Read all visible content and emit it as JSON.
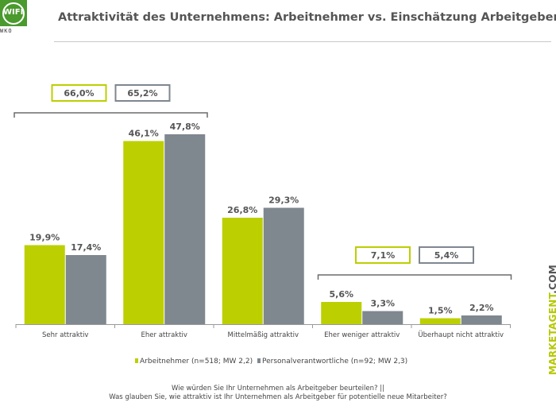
{
  "logo": {
    "name": "WIFI",
    "sub": "WKO"
  },
  "header": {
    "title": "Attraktivität des Unternehmens: Arbeitnehmer vs. Einschätzung Arbeitgeber"
  },
  "brand": {
    "main": "MARKETAGENT",
    "suffix": ".COM"
  },
  "footnote": {
    "line1": "Wie würden Sie Ihr Unternehmen als Arbeitgeber beurteilen?  ||",
    "line2": "Was glauben Sie, wie attraktiv ist Ihr Unternehmen als Arbeitgeber für potentielle neue Mitarbeiter?"
  },
  "chart_data": {
    "type": "bar",
    "title": "Attraktivität des Unternehmens: Arbeitnehmer vs. Einschätzung Arbeitgeber",
    "categories": [
      "Sehr attraktiv",
      "Eher attraktiv",
      "Mittelmäßig attraktiv",
      "Eher weniger attraktiv",
      "Überhaupt nicht attraktiv"
    ],
    "series": [
      {
        "name": "Arbeitnehmer (n=518; MW 2,2)",
        "color": "#bccf00",
        "values": [
          19.9,
          46.1,
          26.8,
          5.6,
          1.5
        ],
        "labels": [
          "19,9%",
          "46,1%",
          "26,8%",
          "5,6%",
          "1,5%"
        ]
      },
      {
        "name": "Personalverantwortliche (n=92; MW 2,3)",
        "color": "#7f878f",
        "values": [
          17.4,
          47.8,
          29.3,
          3.3,
          2.2
        ],
        "labels": [
          "17,4%",
          "47,8%",
          "29,3%",
          "3,3%",
          "2,2%"
        ]
      }
    ],
    "groups": [
      {
        "categories": [
          0,
          1
        ],
        "labels": [
          "66,0%",
          "65,2%"
        ]
      },
      {
        "categories": [
          3,
          4
        ],
        "labels": [
          "7,1%",
          "5,4%"
        ]
      }
    ],
    "ylim": [
      0,
      50
    ],
    "grid": false,
    "legend": "bottom"
  }
}
